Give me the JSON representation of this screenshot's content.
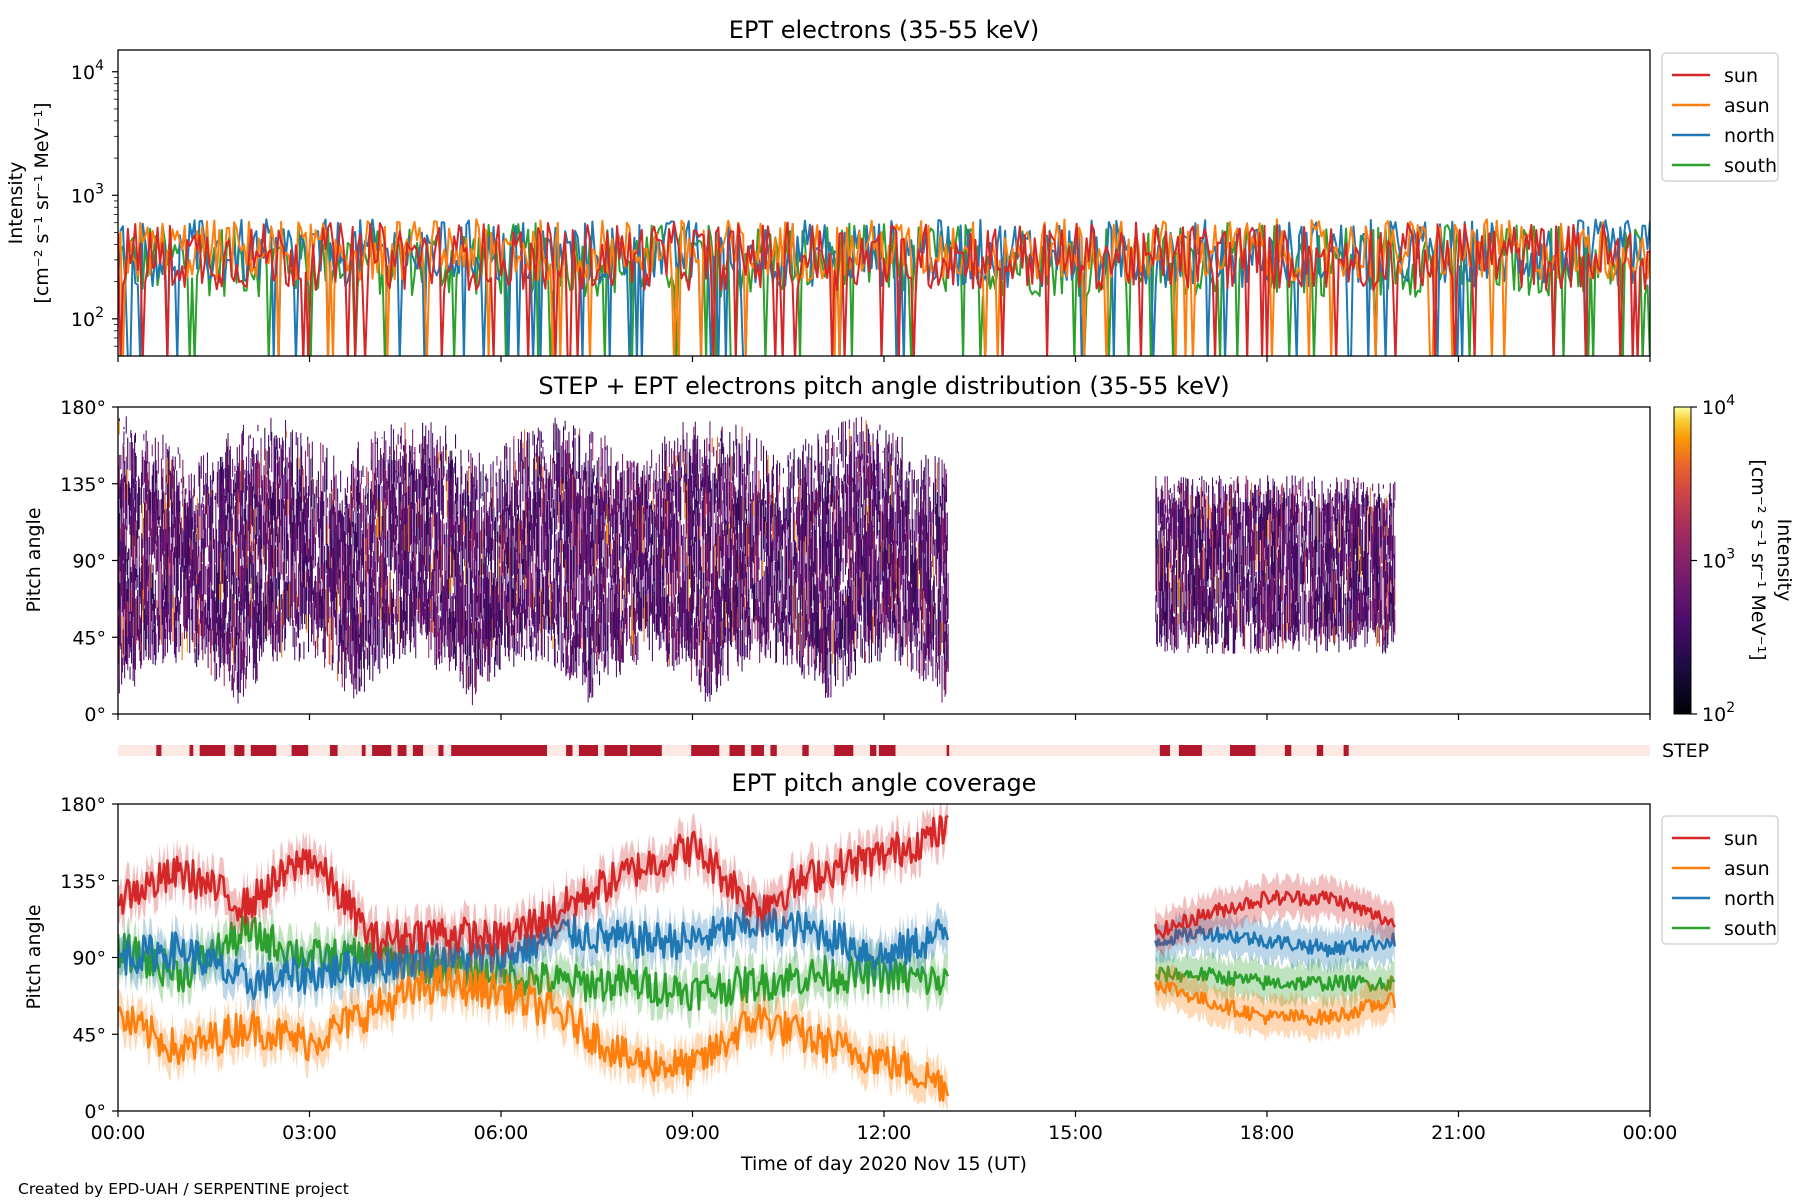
{
  "figure": {
    "credit": "Created by EPD-UAH / SERPENTINE project",
    "colors": {
      "sun": "#d62728",
      "asun": "#ff7f0e",
      "north": "#1f77b4",
      "south": "#2ca02c",
      "step_bar": "#b2182b",
      "step_bg": "#fde9e4"
    }
  },
  "chart_data": [
    {
      "type": "line",
      "title": "EPT electrons (35-55 keV)",
      "ylabel": "Intensity",
      "ylabel_unit": "[cm⁻² s⁻¹ sr⁻¹ MeV⁻¹]",
      "yscale": "log",
      "ylim": [
        50,
        15000
      ],
      "yticks": [
        {
          "v": 100,
          "base": "10",
          "exp": "2"
        },
        {
          "v": 1000,
          "base": "10",
          "exp": "3"
        },
        {
          "v": 10000,
          "base": "10",
          "exp": "4"
        }
      ],
      "xlim_hours": [
        0,
        24
      ],
      "legend_position": "outside-right",
      "series": [
        {
          "name": "sun",
          "color": "#d62728",
          "typical": 320,
          "spread": 0.55
        },
        {
          "name": "asun",
          "color": "#ff7f0e",
          "typical": 360,
          "spread": 0.5
        },
        {
          "name": "north",
          "color": "#1f77b4",
          "typical": 340,
          "spread": 0.55
        },
        {
          "name": "south",
          "color": "#2ca02c",
          "typical": 300,
          "spread": 0.6
        }
      ]
    },
    {
      "type": "heatmap",
      "title": "STEP + EPT electrons pitch angle distribution (35-55 keV)",
      "ylabel": "Pitch angle",
      "ylim": [
        0,
        180
      ],
      "yticks": [
        "0°",
        "45°",
        "90°",
        "135°",
        "180°"
      ],
      "colorbar": {
        "label": "Intensity",
        "unit": "[cm⁻² s⁻¹ sr⁻¹ MeV⁻¹]",
        "scale": "log",
        "range": [
          100,
          10000
        ],
        "ticks": [
          {
            "v": 100,
            "base": "10",
            "exp": "2"
          },
          {
            "v": 1000,
            "base": "10",
            "exp": "3"
          },
          {
            "v": 10000,
            "base": "10",
            "exp": "4"
          }
        ],
        "colormap": "inferno"
      },
      "data_intervals_hours": [
        [
          0,
          13.0
        ],
        [
          16.25,
          20.0
        ]
      ]
    },
    {
      "type": "bar",
      "label": "STEP",
      "description_intervals_hours": [
        [
          0.6,
          0.68
        ],
        [
          1.12,
          1.18
        ],
        [
          1.28,
          1.68
        ],
        [
          1.82,
          1.98
        ],
        [
          2.08,
          2.48
        ],
        [
          2.72,
          2.98
        ],
        [
          3.32,
          3.44
        ],
        [
          3.82,
          3.88
        ],
        [
          3.98,
          4.28
        ],
        [
          4.38,
          4.52
        ],
        [
          4.62,
          4.78
        ],
        [
          5.02,
          5.1
        ],
        [
          5.22,
          6.72
        ],
        [
          7.02,
          7.12
        ],
        [
          7.22,
          7.52
        ],
        [
          7.62,
          7.98
        ],
        [
          8.02,
          8.52
        ],
        [
          8.98,
          9.42
        ],
        [
          9.58,
          9.82
        ],
        [
          9.92,
          10.12
        ],
        [
          10.22,
          10.32
        ],
        [
          10.72,
          10.82
        ],
        [
          11.22,
          11.52
        ],
        [
          11.78,
          11.88
        ],
        [
          11.92,
          12.18
        ],
        [
          12.98,
          13.02
        ],
        [
          16.32,
          16.48
        ],
        [
          16.62,
          16.98
        ],
        [
          17.42,
          17.82
        ],
        [
          18.28,
          18.38
        ],
        [
          18.78,
          18.88
        ],
        [
          19.2,
          19.28
        ]
      ]
    },
    {
      "type": "line",
      "title": "EPT pitch angle coverage",
      "ylabel": "Pitch angle",
      "ylim": [
        0,
        180
      ],
      "yticks": [
        "0°",
        "45°",
        "90°",
        "135°",
        "180°"
      ],
      "xlabel": "Time of day 2020 Nov 15 (UT)",
      "xticks": [
        "00:00",
        "03:00",
        "06:00",
        "09:00",
        "12:00",
        "15:00",
        "18:00",
        "21:00",
        "00:00"
      ],
      "xlim_hours": [
        0,
        24
      ],
      "legend_position": "outside-right",
      "series": [
        {
          "name": "sun",
          "color": "#d62728",
          "x_hours": [
            0,
            1,
            2,
            3,
            4,
            5,
            6,
            7,
            8,
            9,
            10,
            11,
            12,
            13,
            16.3,
            17,
            18,
            19,
            20
          ],
          "values": [
            125,
            140,
            120,
            150,
            100,
            105,
            100,
            120,
            140,
            155,
            120,
            140,
            150,
            165,
            105,
            115,
            125,
            125,
            110
          ]
        },
        {
          "name": "asun",
          "color": "#ff7f0e",
          "x_hours": [
            0,
            1,
            2,
            3,
            4,
            5,
            6,
            7,
            8,
            9,
            10,
            11,
            12,
            13,
            16.3,
            17,
            18,
            19,
            20
          ],
          "values": [
            55,
            35,
            50,
            40,
            60,
            75,
            70,
            55,
            30,
            25,
            55,
            40,
            30,
            15,
            75,
            65,
            55,
            55,
            65
          ]
        },
        {
          "name": "north",
          "color": "#1f77b4",
          "x_hours": [
            0,
            1,
            2,
            3,
            4,
            5,
            6,
            7,
            8,
            9,
            10,
            11,
            12,
            13,
            16.3,
            17,
            18,
            19,
            20
          ],
          "values": [
            90,
            95,
            75,
            80,
            85,
            90,
            90,
            105,
            100,
            100,
            110,
            105,
            90,
            105,
            100,
            105,
            100,
            95,
            100
          ]
        },
        {
          "name": "south",
          "color": "#2ca02c",
          "x_hours": [
            0,
            1,
            2,
            3,
            4,
            5,
            6,
            7,
            8,
            9,
            10,
            11,
            12,
            13,
            16.3,
            17,
            18,
            19,
            20
          ],
          "values": [
            95,
            80,
            105,
            90,
            90,
            85,
            80,
            75,
            75,
            70,
            75,
            80,
            80,
            75,
            80,
            80,
            75,
            75,
            75
          ]
        }
      ]
    }
  ]
}
